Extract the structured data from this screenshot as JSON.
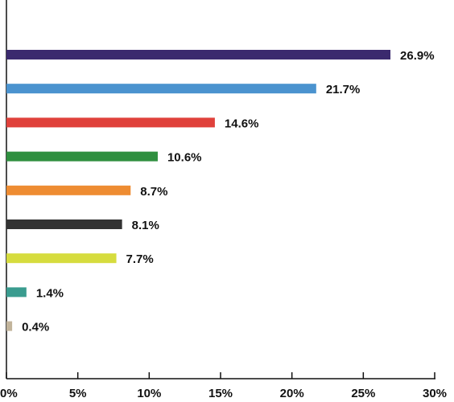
{
  "chart_data": {
    "type": "barh",
    "categories": [
      null,
      null,
      null,
      null,
      null,
      null,
      null,
      null,
      null
    ],
    "values": [
      26.9,
      21.7,
      14.6,
      10.6,
      8.7,
      8.1,
      7.7,
      1.4,
      0.4
    ],
    "value_labels": [
      "26.9%",
      "21.7%",
      "14.6%",
      "10.6%",
      "8.7%",
      "8.1%",
      "7.7%",
      "1.4%",
      "0.4%"
    ],
    "colors": [
      "#3b2a6e",
      "#4b93cf",
      "#e0413b",
      "#2f8f3f",
      "#ee8c32",
      "#333333",
      "#d6dc3e",
      "#3a9c8f",
      "#c2b49b"
    ],
    "xlim": [
      0,
      30
    ],
    "xticks": [
      {
        "value": 0,
        "label": "0%"
      },
      {
        "value": 5,
        "label": "5%"
      },
      {
        "value": 10,
        "label": "10%"
      },
      {
        "value": 15,
        "label": "15%"
      },
      {
        "value": 20,
        "label": "20%"
      },
      {
        "value": 25,
        "label": "25%"
      },
      {
        "value": 30,
        "label": "30%"
      }
    ],
    "grid": false
  }
}
